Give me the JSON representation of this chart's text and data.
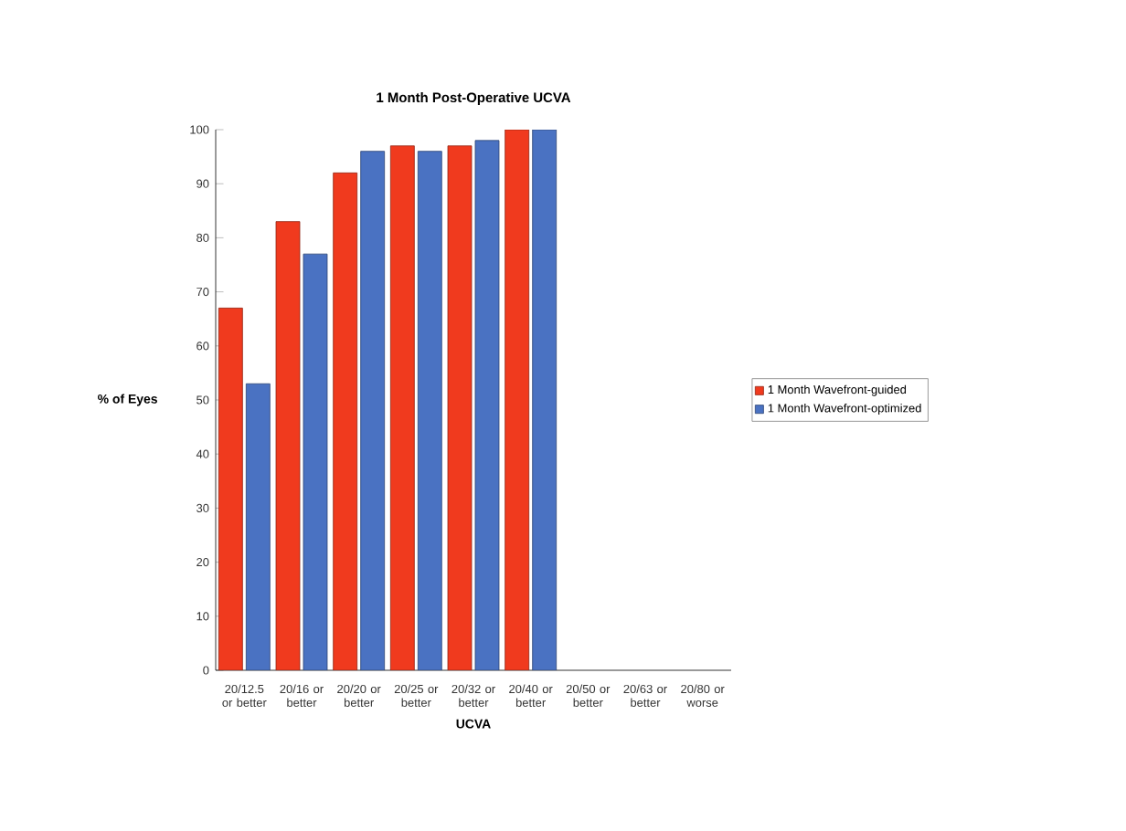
{
  "chart_data": {
    "type": "bar",
    "title": "1 Month Post-Operative UCVA",
    "xlabel": "UCVA",
    "ylabel": "% of Eyes",
    "categories": [
      "20/12.5 or better",
      "20/16 or better",
      "20/20 or better",
      "20/25 or better",
      "20/32 or better",
      "20/40 or better",
      "20/50 or better",
      "20/63 or better",
      "20/80 or worse"
    ],
    "series": [
      {
        "name": "1 Month Wavefront-guided",
        "color": "#f03a1e",
        "values": [
          67,
          83,
          92,
          97,
          97,
          100,
          null,
          null,
          null
        ]
      },
      {
        "name": "1 Month Wavefront-optimized",
        "color": "#4a72c2",
        "values": [
          53,
          77,
          96,
          96,
          98,
          100,
          null,
          null,
          null
        ]
      }
    ],
    "ylim": [
      0,
      100
    ],
    "yticks": [
      0,
      10,
      20,
      30,
      40,
      50,
      60,
      70,
      80,
      90,
      100
    ],
    "grid": false,
    "legend": "right"
  }
}
